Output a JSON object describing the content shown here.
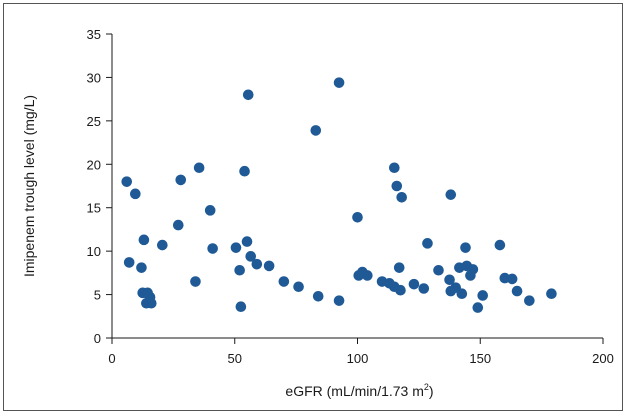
{
  "chart_data": {
    "type": "scatter",
    "xlabel": "eGFR (mL/min/1.73 m",
    "xlabel_sup": "2",
    "xlabel_end": ")",
    "ylabel": "Imipenem trough level (mg/L)",
    "xlim": [
      0,
      200
    ],
    "ylim": [
      0,
      35
    ],
    "xticks": [
      0,
      50,
      100,
      150,
      200
    ],
    "yticks": [
      0,
      5,
      10,
      15,
      20,
      25,
      30,
      35
    ],
    "grid": false,
    "marker_color": "#1f5a96",
    "points": [
      {
        "x": 6,
        "y": 18.0
      },
      {
        "x": 7,
        "y": 8.7
      },
      {
        "x": 9.5,
        "y": 16.6
      },
      {
        "x": 12,
        "y": 8.1
      },
      {
        "x": 12.5,
        "y": 5.2
      },
      {
        "x": 13,
        "y": 11.3
      },
      {
        "x": 14,
        "y": 4.0
      },
      {
        "x": 14.5,
        "y": 5.2
      },
      {
        "x": 15.5,
        "y": 4.7
      },
      {
        "x": 16,
        "y": 4.0
      },
      {
        "x": 20.5,
        "y": 10.7
      },
      {
        "x": 27,
        "y": 13.0
      },
      {
        "x": 28,
        "y": 18.2
      },
      {
        "x": 34,
        "y": 6.5
      },
      {
        "x": 35.5,
        "y": 19.6
      },
      {
        "x": 40,
        "y": 14.7
      },
      {
        "x": 41,
        "y": 10.3
      },
      {
        "x": 50.5,
        "y": 10.4
      },
      {
        "x": 52,
        "y": 7.8
      },
      {
        "x": 52.5,
        "y": 3.6
      },
      {
        "x": 54,
        "y": 19.2
      },
      {
        "x": 55,
        "y": 11.1
      },
      {
        "x": 55.5,
        "y": 28.0
      },
      {
        "x": 56.5,
        "y": 9.4
      },
      {
        "x": 59,
        "y": 8.5
      },
      {
        "x": 64,
        "y": 8.3
      },
      {
        "x": 70,
        "y": 6.5
      },
      {
        "x": 76,
        "y": 5.9
      },
      {
        "x": 83,
        "y": 23.9
      },
      {
        "x": 84,
        "y": 4.8
      },
      {
        "x": 92.5,
        "y": 29.4
      },
      {
        "x": 92.5,
        "y": 4.3
      },
      {
        "x": 100,
        "y": 13.9
      },
      {
        "x": 100.5,
        "y": 7.2
      },
      {
        "x": 102,
        "y": 7.6
      },
      {
        "x": 104,
        "y": 7.2
      },
      {
        "x": 110,
        "y": 6.5
      },
      {
        "x": 113,
        "y": 6.3
      },
      {
        "x": 115,
        "y": 19.6
      },
      {
        "x": 115,
        "y": 5.9
      },
      {
        "x": 116,
        "y": 17.5
      },
      {
        "x": 117,
        "y": 8.1
      },
      {
        "x": 117.5,
        "y": 5.5
      },
      {
        "x": 118,
        "y": 16.2
      },
      {
        "x": 123,
        "y": 6.2
      },
      {
        "x": 127,
        "y": 5.7
      },
      {
        "x": 128.5,
        "y": 10.9
      },
      {
        "x": 133,
        "y": 7.8
      },
      {
        "x": 137.5,
        "y": 6.7
      },
      {
        "x": 138,
        "y": 16.5
      },
      {
        "x": 138,
        "y": 5.4
      },
      {
        "x": 140,
        "y": 5.8
      },
      {
        "x": 141.5,
        "y": 8.1
      },
      {
        "x": 142.5,
        "y": 5.1
      },
      {
        "x": 144,
        "y": 10.4
      },
      {
        "x": 144.5,
        "y": 8.3
      },
      {
        "x": 146,
        "y": 7.2
      },
      {
        "x": 147,
        "y": 7.9
      },
      {
        "x": 149,
        "y": 3.5
      },
      {
        "x": 151,
        "y": 4.9
      },
      {
        "x": 158,
        "y": 10.7
      },
      {
        "x": 160,
        "y": 6.9
      },
      {
        "x": 163,
        "y": 6.8
      },
      {
        "x": 165,
        "y": 5.4
      },
      {
        "x": 170,
        "y": 4.3
      },
      {
        "x": 179,
        "y": 5.1
      }
    ]
  }
}
